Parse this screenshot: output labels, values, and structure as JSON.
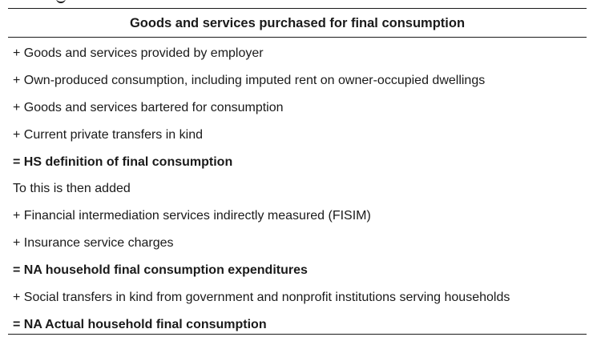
{
  "table": {
    "header": "Goods and services purchased for final consumption",
    "rows": [
      {
        "text": "+ Goods and services provided by employer",
        "bold": false
      },
      {
        "text": "+ Own-produced consumption, including imputed rent on owner-occupied dwellings",
        "bold": false
      },
      {
        "text": "+ Goods and services bartered for consumption",
        "bold": false
      },
      {
        "text": "+ Current private transfers in kind",
        "bold": false
      },
      {
        "text": "= HS definition of final consumption",
        "bold": true
      },
      {
        "text": "To this is then added",
        "bold": false
      },
      {
        "text": "+ Financial intermediation services indirectly measured (FISIM)",
        "bold": false
      },
      {
        "text": "+ Insurance service charges",
        "bold": false
      },
      {
        "text": "= NA household final consumption expenditures",
        "bold": true
      },
      {
        "text": "+ Social transfers in kind from government and nonprofit institutions serving households",
        "bold": false
      },
      {
        "text": "= NA Actual household final consumption",
        "bold": true
      }
    ]
  }
}
